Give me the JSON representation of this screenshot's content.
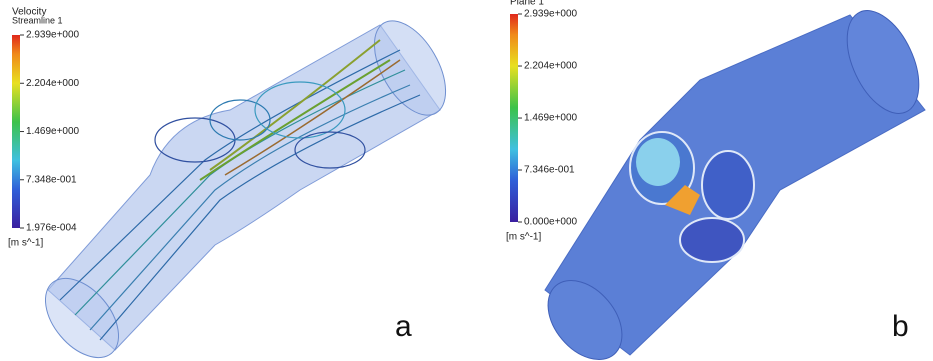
{
  "panels": [
    {
      "legend": {
        "title": "Velocity",
        "subtitle": "Streamline 1",
        "ticks": [
          {
            "value": 2.939,
            "label": "2.939e+000"
          },
          {
            "value": 2.204,
            "label": "2.204e+000"
          },
          {
            "value": 1.469,
            "label": "1.469e+000"
          },
          {
            "value": 0.7348,
            "label": "7.348e-001"
          },
          {
            "value": 0.0001976,
            "label": "1.976e-004"
          }
        ],
        "unit": "[m s^-1]"
      },
      "label": "a"
    },
    {
      "legend": {
        "title": "Plane 1",
        "ticks": [
          {
            "value": 2.939,
            "label": "2.939e+000"
          },
          {
            "value": 2.204,
            "label": "2.204e+000"
          },
          {
            "value": 1.469,
            "label": "1.469e+000"
          },
          {
            "value": 0.7346,
            "label": "7.346e-001"
          },
          {
            "value": 0,
            "label": "0.000e+000"
          }
        ],
        "unit": "[m s^-1]"
      },
      "label": "b"
    }
  ]
}
